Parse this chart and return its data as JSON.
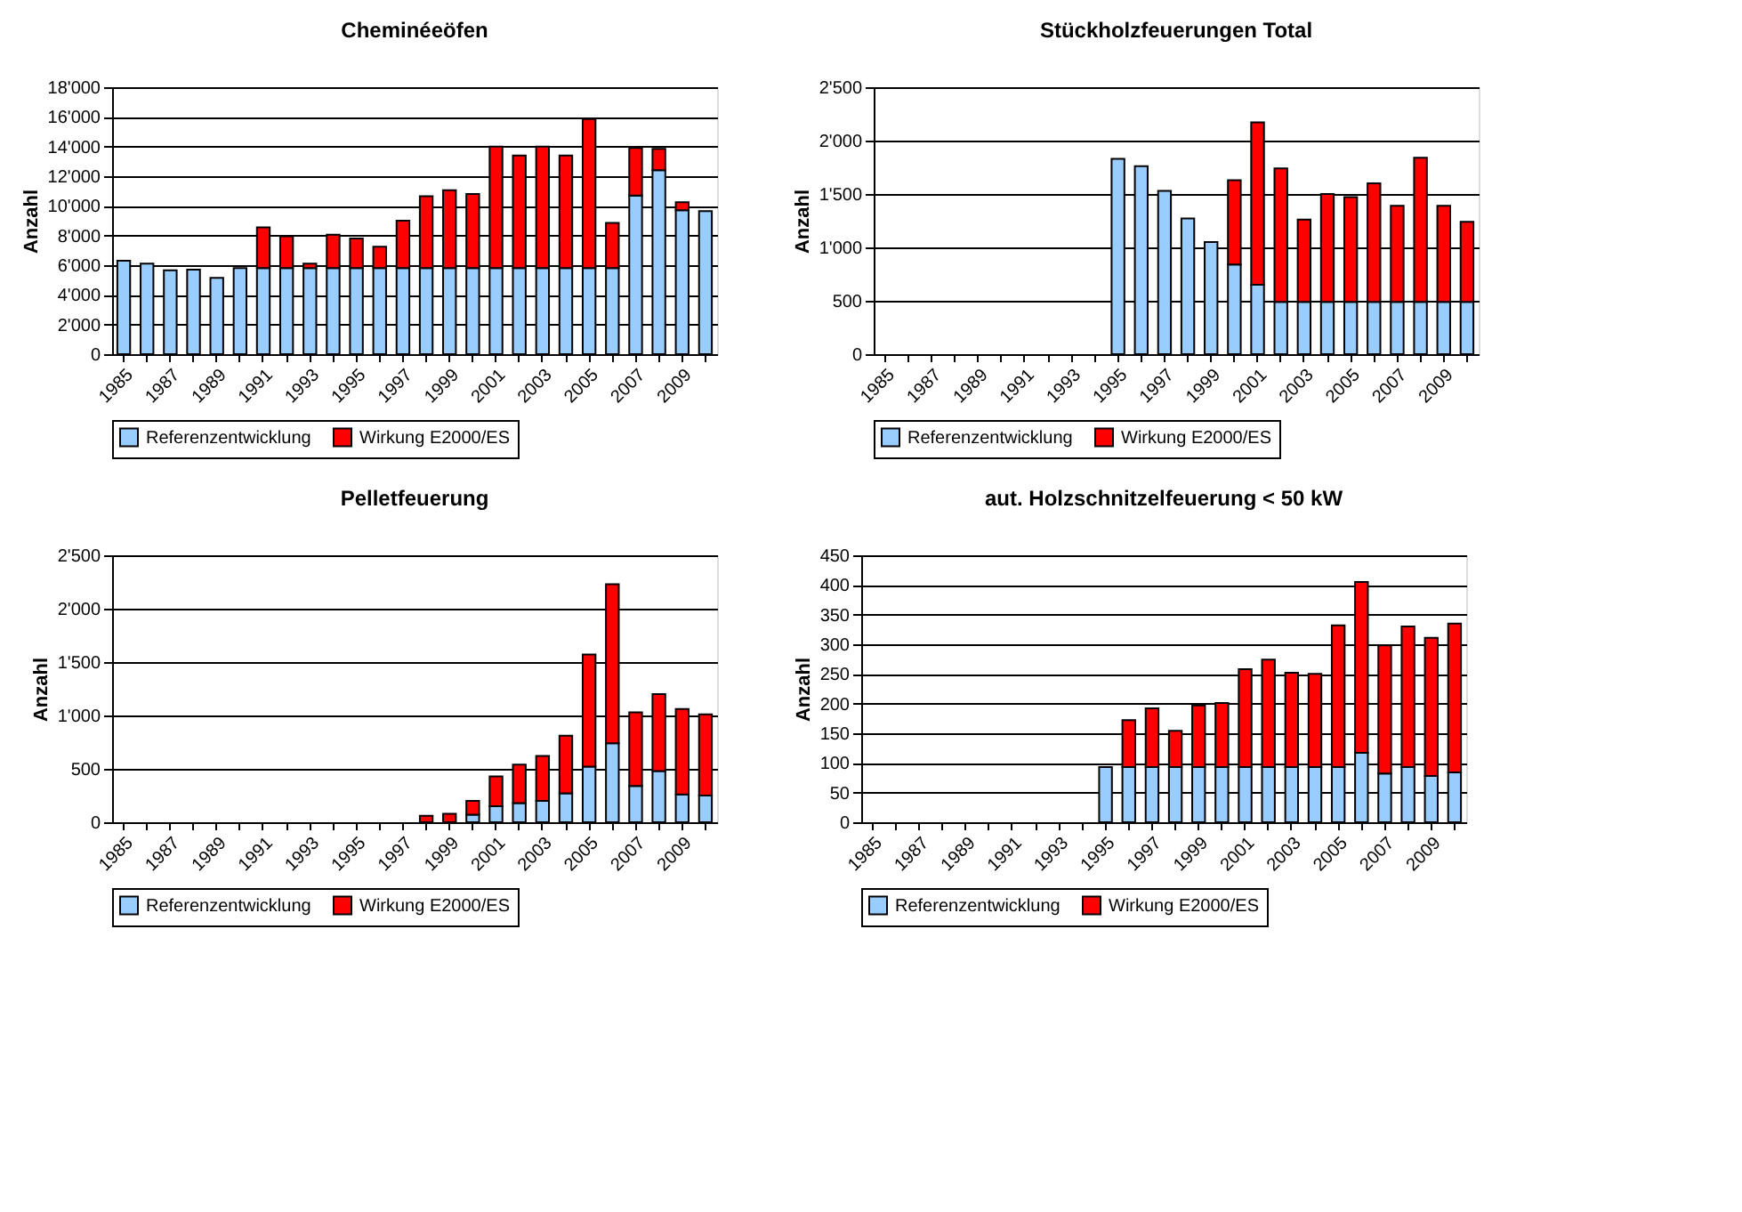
{
  "chart_data": [
    {
      "type": "bar",
      "title": "Cheminéeöfen",
      "ylabel": "Anzahl",
      "stacked": true,
      "grid": "y",
      "legend": "bottom",
      "categories": [
        "1985",
        null,
        "1987",
        null,
        "1989",
        null,
        "1991",
        null,
        "1993",
        null,
        "1995",
        null,
        "1997",
        null,
        "1999",
        null,
        "2001",
        null,
        "2003",
        null,
        "2005",
        null,
        "2007",
        null,
        "2009",
        null
      ],
      "ylim": [
        0,
        18000
      ],
      "yticks": [
        0,
        {
          "value": 2000,
          "label": "2'000"
        },
        {
          "value": 4000,
          "label": "4'000"
        },
        {
          "value": 6000,
          "label": "6'000"
        },
        {
          "value": 8000,
          "label": "8'000"
        },
        {
          "value": 10000,
          "label": "10'000"
        },
        {
          "value": 12000,
          "label": "12'000"
        },
        {
          "value": 14000,
          "label": "14'000"
        },
        {
          "value": 16000,
          "label": "16'000"
        },
        {
          "value": 18000,
          "label": "18'000"
        }
      ],
      "series": [
        {
          "name": "Referenzentwicklung",
          "color": "#99ccff",
          "values": [
            6300,
            6100,
            5650,
            5700,
            5150,
            5800,
            5800,
            5800,
            5800,
            5800,
            5800,
            5800,
            5800,
            5800,
            5800,
            5800,
            5800,
            5800,
            5800,
            5800,
            5800,
            5800,
            10700,
            12400,
            9700,
            9650
          ]
        },
        {
          "name": "Wirkung E2000/ES",
          "color": "#ff0000",
          "values": [
            null,
            null,
            null,
            null,
            null,
            null,
            2750,
            2150,
            300,
            2250,
            2000,
            1450,
            3200,
            4850,
            5250,
            5000,
            8200,
            7600,
            8200,
            7600,
            10050,
            3050,
            3200,
            1450,
            550,
            null
          ]
        }
      ]
    },
    {
      "type": "bar",
      "title": "Stückholzfeuerungen Total",
      "ylabel": "Anzahl",
      "stacked": true,
      "grid": "y",
      "legend": "bottom",
      "categories": [
        "1985",
        null,
        "1987",
        null,
        "1989",
        null,
        "1991",
        null,
        "1993",
        null,
        "1995",
        null,
        "1997",
        null,
        "1999",
        null,
        "2001",
        null,
        "2003",
        null,
        "2005",
        null,
        "2007",
        null,
        "2009",
        null
      ],
      "ylim": [
        0,
        2500
      ],
      "yticks": [
        0,
        500,
        {
          "value": 1000,
          "label": "1'000"
        },
        {
          "value": 1500,
          "label": "1'500"
        },
        {
          "value": 2000,
          "label": "2'000"
        },
        {
          "value": 2500,
          "label": "2'500"
        }
      ],
      "series": [
        {
          "name": "Referenzentwicklung",
          "color": "#99ccff",
          "values": [
            null,
            null,
            null,
            null,
            null,
            null,
            null,
            null,
            null,
            null,
            1830,
            1760,
            1530,
            1270,
            1050,
            840,
            650,
            490,
            490,
            490,
            490,
            490,
            490,
            490,
            490,
            490
          ]
        },
        {
          "name": "Wirkung E2000/ES",
          "color": "#ff0000",
          "values": [
            null,
            null,
            null,
            null,
            null,
            null,
            null,
            null,
            null,
            null,
            null,
            null,
            null,
            null,
            null,
            790,
            1520,
            1250,
            770,
            1010,
            980,
            1110,
            900,
            1350,
            900,
            750
          ]
        }
      ]
    },
    {
      "type": "bar",
      "title": "Pelletfeuerung",
      "ylabel": "Anzahl",
      "stacked": true,
      "grid": "y",
      "legend": "bottom",
      "categories": [
        "1985",
        null,
        "1987",
        null,
        "1989",
        null,
        "1991",
        null,
        "1993",
        null,
        "1995",
        null,
        "1997",
        null,
        "1999",
        null,
        "2001",
        null,
        "2003",
        null,
        "2005",
        null,
        "2007",
        null,
        "2009",
        null
      ],
      "ylim": [
        0,
        2500
      ],
      "yticks": [
        0,
        500,
        {
          "value": 1000,
          "label": "1'000"
        },
        {
          "value": 1500,
          "label": "1'500"
        },
        {
          "value": 2000,
          "label": "2'000"
        },
        {
          "value": 2500,
          "label": "2'500"
        }
      ],
      "series": [
        {
          "name": "Referenzentwicklung",
          "color": "#99ccff",
          "values": [
            null,
            null,
            null,
            null,
            null,
            null,
            null,
            null,
            null,
            null,
            null,
            null,
            null,
            null,
            null,
            70,
            150,
            180,
            200,
            270,
            520,
            740,
            340,
            480,
            260,
            250
          ]
        },
        {
          "name": "Wirkung E2000/ES",
          "color": "#ff0000",
          "values": [
            null,
            null,
            null,
            null,
            null,
            null,
            null,
            null,
            null,
            null,
            null,
            null,
            null,
            60,
            80,
            130,
            280,
            360,
            420,
            540,
            1050,
            1490,
            690,
            720,
            800,
            760
          ]
        }
      ]
    },
    {
      "type": "bar",
      "title": "aut. Holzschnitzelfeuerung < 50 kW",
      "ylabel": "Anzahl",
      "stacked": true,
      "grid": "y",
      "legend": "bottom",
      "categories": [
        "1985",
        null,
        "1987",
        null,
        "1989",
        null,
        "1991",
        null,
        "1993",
        null,
        "1995",
        null,
        "1997",
        null,
        "1999",
        null,
        "2001",
        null,
        "2003",
        null,
        "2005",
        null,
        "2007",
        null,
        "2009",
        null
      ],
      "ylim": [
        0,
        450
      ],
      "yticks": [
        0,
        50,
        100,
        150,
        200,
        250,
        300,
        350,
        400,
        450
      ],
      "series": [
        {
          "name": "Referenzentwicklung",
          "color": "#99ccff",
          "values": [
            null,
            null,
            null,
            null,
            null,
            null,
            null,
            null,
            null,
            null,
            93,
            93,
            93,
            93,
            93,
            93,
            93,
            93,
            93,
            93,
            93,
            117,
            82,
            93,
            78,
            84
          ]
        },
        {
          "name": "Wirkung E2000/ES",
          "color": "#ff0000",
          "values": [
            null,
            null,
            null,
            null,
            null,
            null,
            null,
            null,
            null,
            null,
            null,
            79,
            99,
            61,
            104,
            108,
            165,
            181,
            159,
            157,
            239,
            288,
            216,
            237,
            233,
            251
          ]
        }
      ]
    }
  ]
}
